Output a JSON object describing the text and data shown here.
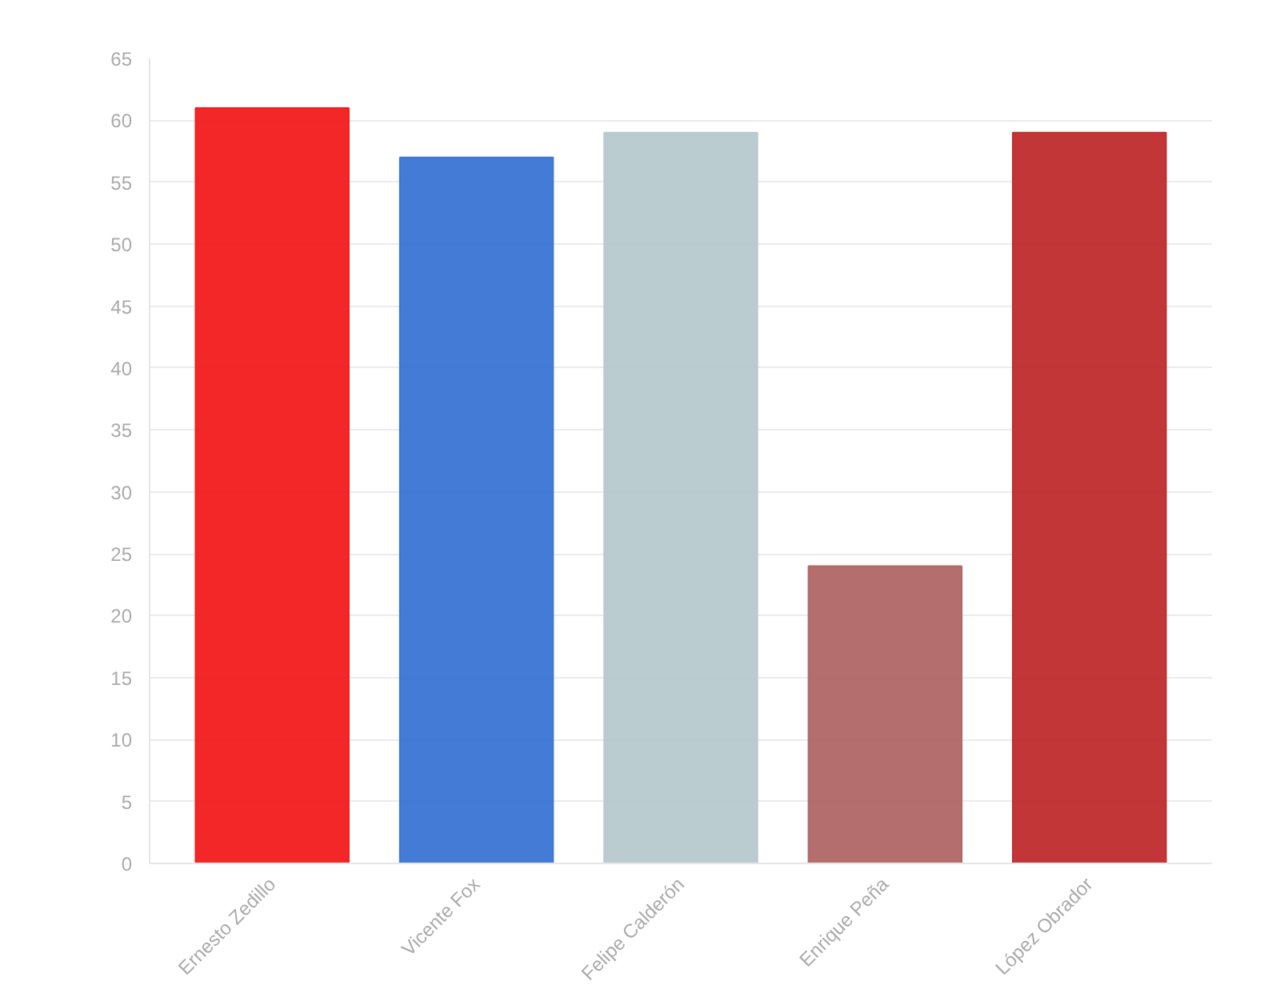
{
  "chart_data": {
    "type": "bar",
    "categories": [
      "Ernesto Zedillo",
      "Vicente Fox",
      "Felipe Calderón",
      "Enrique Peña",
      "López Obrador"
    ],
    "values": [
      61,
      57,
      59,
      24,
      59
    ],
    "colors": [
      "#f21b1b",
      "#3a74d4",
      "#b7c9cd",
      "#b06665",
      "#bf2b2c"
    ],
    "ylim": [
      0,
      65
    ],
    "yticks": [
      0,
      5,
      10,
      15,
      20,
      25,
      30,
      35,
      40,
      45,
      50,
      55,
      60,
      65
    ],
    "grid": "y"
  }
}
